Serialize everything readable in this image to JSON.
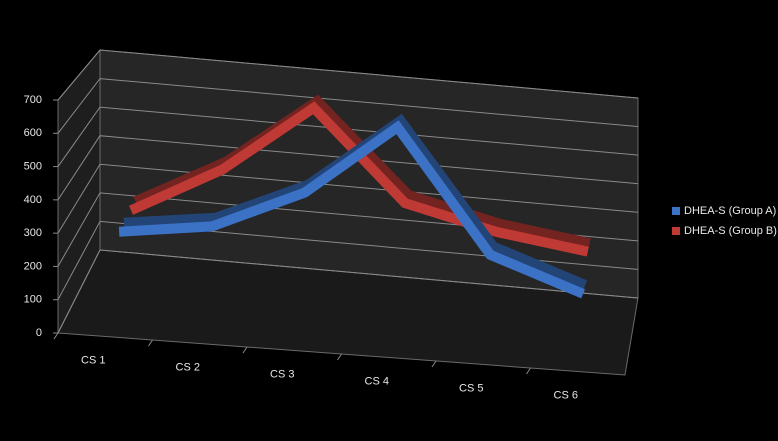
{
  "chart_data": {
    "type": "line",
    "categories": [
      "CS 1",
      "CS 2",
      "CS 3",
      "CS 4",
      "CS 5",
      "CS 6"
    ],
    "series": [
      {
        "name": "DHEA-S (Group A)",
        "color": "#3b72c6",
        "values": [
          240,
          280,
          410,
          640,
          260,
          160
        ]
      },
      {
        "name": "DHEA-S (Group B)",
        "color": "#c03a35",
        "values": [
          240,
          400,
          630,
          340,
          270,
          230
        ]
      }
    ],
    "ylim": [
      0,
      700
    ],
    "yticks": [
      0,
      100,
      200,
      300,
      400,
      500,
      600,
      700
    ],
    "grid": true,
    "legend": "right"
  }
}
